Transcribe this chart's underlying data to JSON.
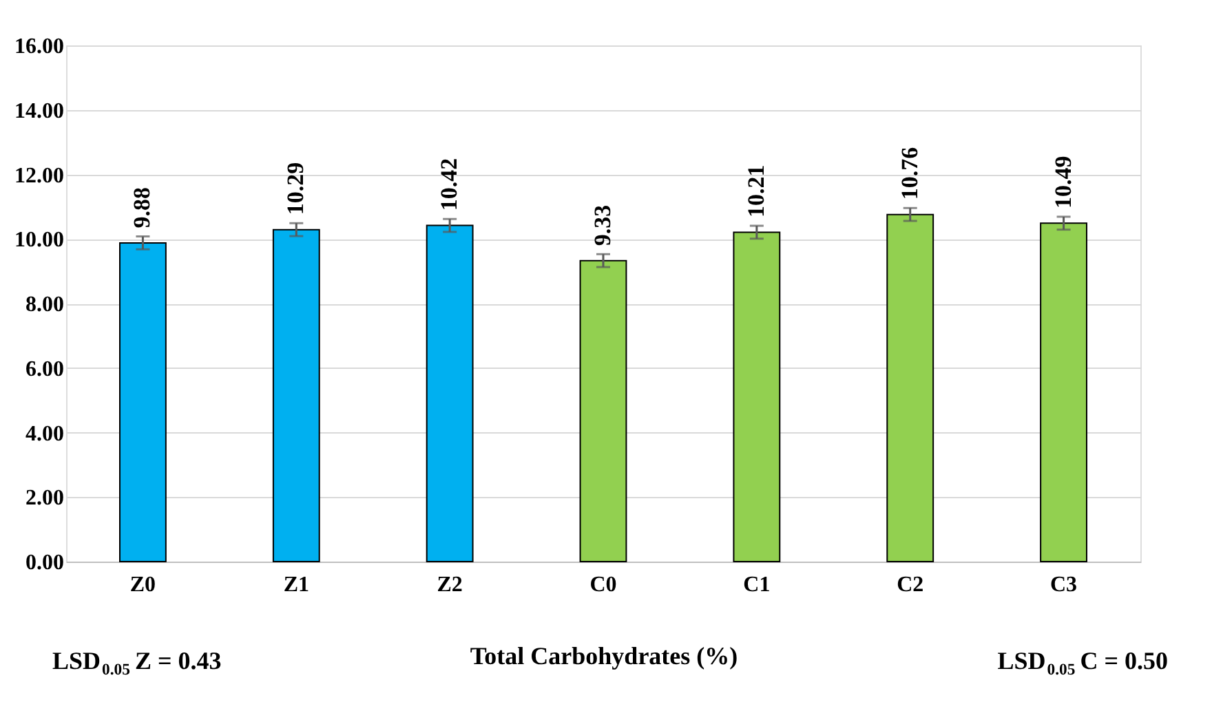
{
  "chart_data": {
    "type": "bar",
    "xlabel": "Total Carbohydrates (%)",
    "categories": [
      "Z0",
      "Z1",
      "Z2",
      "C0",
      "C1",
      "C2",
      "C3"
    ],
    "values": [
      9.88,
      10.29,
      10.42,
      9.33,
      10.21,
      10.76,
      10.49
    ],
    "colors": [
      "#00b0f0",
      "#00b0f0",
      "#00b0f0",
      "#92d050",
      "#92d050",
      "#92d050",
      "#92d050"
    ],
    "errors": [
      0.2,
      0.2,
      0.2,
      0.2,
      0.2,
      0.2,
      0.2
    ],
    "ylim": [
      0,
      16
    ],
    "yticks": [
      {
        "value": 0,
        "label": "0.00"
      },
      {
        "value": 2,
        "label": "2.00"
      },
      {
        "value": 4,
        "label": "4.00"
      },
      {
        "value": 6,
        "label": "6.00"
      },
      {
        "value": 8,
        "label": "8.00"
      },
      {
        "value": 10,
        "label": "10.00"
      },
      {
        "value": 12,
        "label": "12.00"
      },
      {
        "value": 14,
        "label": "14.00"
      },
      {
        "value": 16,
        "label": "16.00"
      }
    ],
    "data_labels": true,
    "grid": "y",
    "annotations": [
      "LSD$_{0.05}$ Z = 0.43",
      "LSD$_{0.05}$ C = 0.50"
    ]
  }
}
